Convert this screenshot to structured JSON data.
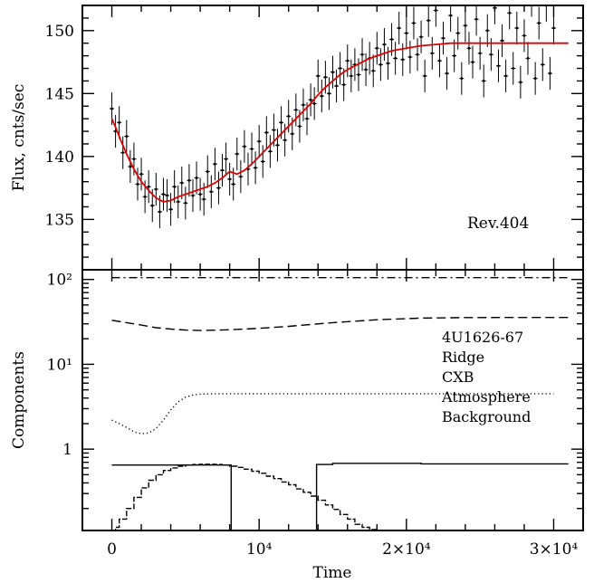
{
  "chart_data": [
    {
      "type": "line",
      "ylabel": "Flux, cnts/sec",
      "annotation": "Rev.404",
      "xlim": [
        -2000,
        32000
      ],
      "ylim": [
        131,
        152
      ],
      "yticks": [
        135,
        140,
        145,
        150
      ],
      "model_curve": {
        "color": "#e00000",
        "x": [
          0,
          300,
          600,
          1000,
          1500,
          2000,
          2500,
          3000,
          3500,
          4000,
          4500,
          5000,
          5500,
          6000,
          6500,
          7000,
          7500,
          8000,
          8500,
          9000,
          9500,
          10000,
          10500,
          11000,
          11500,
          12000,
          12500,
          13000,
          13500,
          14000,
          14500,
          15000,
          15500,
          16000,
          16500,
          17000,
          17500,
          18000,
          19000,
          20000,
          21000,
          22000,
          23000,
          24000,
          25000,
          26000,
          27000,
          28000,
          29000,
          30000,
          31000
        ],
        "y": [
          143.0,
          142.2,
          141.3,
          140.2,
          139.0,
          138.0,
          137.3,
          136.7,
          136.4,
          136.5,
          136.8,
          137.0,
          137.2,
          137.4,
          137.6,
          137.9,
          138.3,
          138.8,
          138.6,
          138.9,
          139.4,
          140.0,
          140.6,
          141.2,
          141.8,
          142.4,
          143.0,
          143.6,
          144.2,
          144.9,
          145.5,
          146.0,
          146.5,
          146.9,
          147.2,
          147.5,
          147.8,
          148.0,
          148.4,
          148.6,
          148.8,
          148.9,
          149.0,
          149.0,
          149.0,
          149.0,
          149.0,
          149.0,
          149.0,
          149.0,
          149.0
        ]
      },
      "observed": {
        "color": "#000000",
        "x": [
          0,
          250,
          500,
          750,
          1000,
          1250,
          1500,
          1750,
          2000,
          2250,
          2500,
          2750,
          3000,
          3250,
          3500,
          3750,
          4000,
          4250,
          4500,
          4750,
          5000,
          5250,
          5500,
          5750,
          6000,
          6250,
          6500,
          6750,
          7000,
          7250,
          7500,
          7750,
          8000,
          8250,
          8500,
          8750,
          9000,
          9250,
          9500,
          9750,
          10000,
          10250,
          10500,
          10750,
          11000,
          11250,
          11500,
          11750,
          12000,
          12250,
          12500,
          12750,
          13000,
          13250,
          13500,
          13750,
          14000,
          14250,
          14500,
          14750,
          15000,
          15250,
          15500,
          15750,
          16000,
          16250,
          16500,
          16750,
          17000,
          17250,
          17500,
          17750,
          18000,
          18250,
          18500,
          18750,
          19000,
          19250,
          19500,
          19750,
          20000,
          20250,
          20500,
          20750,
          21000,
          21250,
          21500,
          21750,
          22000,
          22250,
          22500,
          22750,
          23000,
          23250,
          23500,
          23750,
          24000,
          24250,
          24500,
          24750,
          25000,
          25250,
          25500,
          25750,
          26000,
          26250,
          26500,
          26750,
          27000,
          27250,
          27500,
          27750,
          28000,
          28250,
          28500,
          28750,
          29000,
          29250,
          29500,
          29750,
          30000
        ],
        "y": [
          143.8,
          142.0,
          142.7,
          140.3,
          141.6,
          139.2,
          139.8,
          137.8,
          138.6,
          136.8,
          137.6,
          136.1,
          137.4,
          135.6,
          137.0,
          136.9,
          135.8,
          137.6,
          136.4,
          137.9,
          136.3,
          138.1,
          136.9,
          138.3,
          137.0,
          136.6,
          138.8,
          137.2,
          139.4,
          137.5,
          138.9,
          139.8,
          138.2,
          137.8,
          140.2,
          138.4,
          140.8,
          139.0,
          140.6,
          139.1,
          141.2,
          139.6,
          141.9,
          140.4,
          142.1,
          140.9,
          142.7,
          141.3,
          143.2,
          141.8,
          143.7,
          142.4,
          144.1,
          143.0,
          144.5,
          144.2,
          146.4,
          144.8,
          146.3,
          145.0,
          146.7,
          145.6,
          147.0,
          145.7,
          147.6,
          146.4,
          147.3,
          146.5,
          148.1,
          146.9,
          147.8,
          146.8,
          148.6,
          147.3,
          148.9,
          147.4,
          149.3,
          147.8,
          150.2,
          147.7,
          149.8,
          147.9,
          150.6,
          148.1,
          149.5,
          146.4,
          150.8,
          148.2,
          151.6,
          147.6,
          149.4,
          146.6,
          151.2,
          148.0,
          149.8,
          146.2,
          150.4,
          148.6,
          147.5,
          150.9,
          148.2,
          146.0,
          150.0,
          148.1,
          151.8,
          147.2,
          149.2,
          146.4,
          151.4,
          147.0,
          150.2,
          145.9,
          149.6,
          147.8,
          152.4,
          146.2,
          150.6,
          147.3,
          152.0,
          146.6,
          150.2
        ]
      }
    },
    {
      "type": "line",
      "xlabel": "Time",
      "ylabel": "Components",
      "yscale": "log",
      "xlim": [
        -2000,
        32000
      ],
      "ylim": [
        0.11,
        130
      ],
      "xtick_labels": [
        "0",
        "10⁴",
        "2×10⁴",
        "3×10⁴"
      ],
      "xticks": [
        0,
        10000,
        20000,
        30000
      ],
      "ytick_labels": [
        "1",
        "10¹",
        "10²"
      ],
      "yticks": [
        1,
        10,
        100
      ],
      "series": [
        {
          "name": "4U1626-67",
          "style": "dash-dot",
          "x": [
            0,
            31000
          ],
          "y": [
            105,
            105
          ]
        },
        {
          "name": "Ridge",
          "style": "dashed",
          "x": [
            0,
            1000,
            2000,
            3000,
            4000,
            5000,
            6000,
            8000,
            10000,
            12000,
            15000,
            18000,
            21000,
            24000,
            27000,
            31000
          ],
          "y": [
            33,
            31,
            29,
            27,
            26,
            25.3,
            25,
            25.5,
            26.5,
            28,
            31,
            33.5,
            35,
            35.5,
            35.6,
            35.6
          ]
        },
        {
          "name": "CXB",
          "style": "dotted",
          "x": [
            0,
            500,
            1000,
            1500,
            2000,
            2500,
            3000,
            3500,
            4000,
            4500,
            5000,
            5500,
            6000,
            7000,
            8000,
            10000,
            14000,
            20000,
            26000,
            30000
          ],
          "y": [
            2.2,
            2.0,
            1.8,
            1.6,
            1.52,
            1.55,
            1.75,
            2.2,
            2.9,
            3.6,
            4.1,
            4.35,
            4.45,
            4.5,
            4.5,
            4.5,
            4.5,
            4.5,
            4.5,
            4.5
          ]
        },
        {
          "name": "Atmosphere",
          "style": "stepped",
          "x": [
            0,
            250,
            500,
            1000,
            1500,
            2000,
            2500,
            3000,
            3500,
            4000,
            4500,
            5000,
            5500,
            6000,
            6500,
            7000,
            7500,
            8000,
            8500,
            9000,
            9500,
            10000,
            10500,
            11000,
            11500,
            12000,
            12500,
            13000,
            13500,
            14000,
            14500,
            15000,
            15500,
            16000,
            16500,
            17000,
            17500,
            18000
          ],
          "y": [
            0.11,
            0.12,
            0.15,
            0.2,
            0.27,
            0.35,
            0.43,
            0.5,
            0.56,
            0.6,
            0.63,
            0.65,
            0.66,
            0.665,
            0.665,
            0.66,
            0.65,
            0.63,
            0.61,
            0.58,
            0.55,
            0.52,
            0.48,
            0.45,
            0.41,
            0.38,
            0.34,
            0.31,
            0.28,
            0.25,
            0.22,
            0.195,
            0.17,
            0.15,
            0.13,
            0.12,
            0.113,
            0.11
          ]
        },
        {
          "name": "Background",
          "style": "solid",
          "x": [
            0,
            8100,
            8100,
            13900,
            13900,
            15000,
            15000,
            21000,
            21000,
            31000
          ],
          "y": [
            0.65,
            0.65,
            0.11,
            0.11,
            0.66,
            0.66,
            0.68,
            0.68,
            0.67,
            0.67
          ]
        }
      ]
    }
  ]
}
